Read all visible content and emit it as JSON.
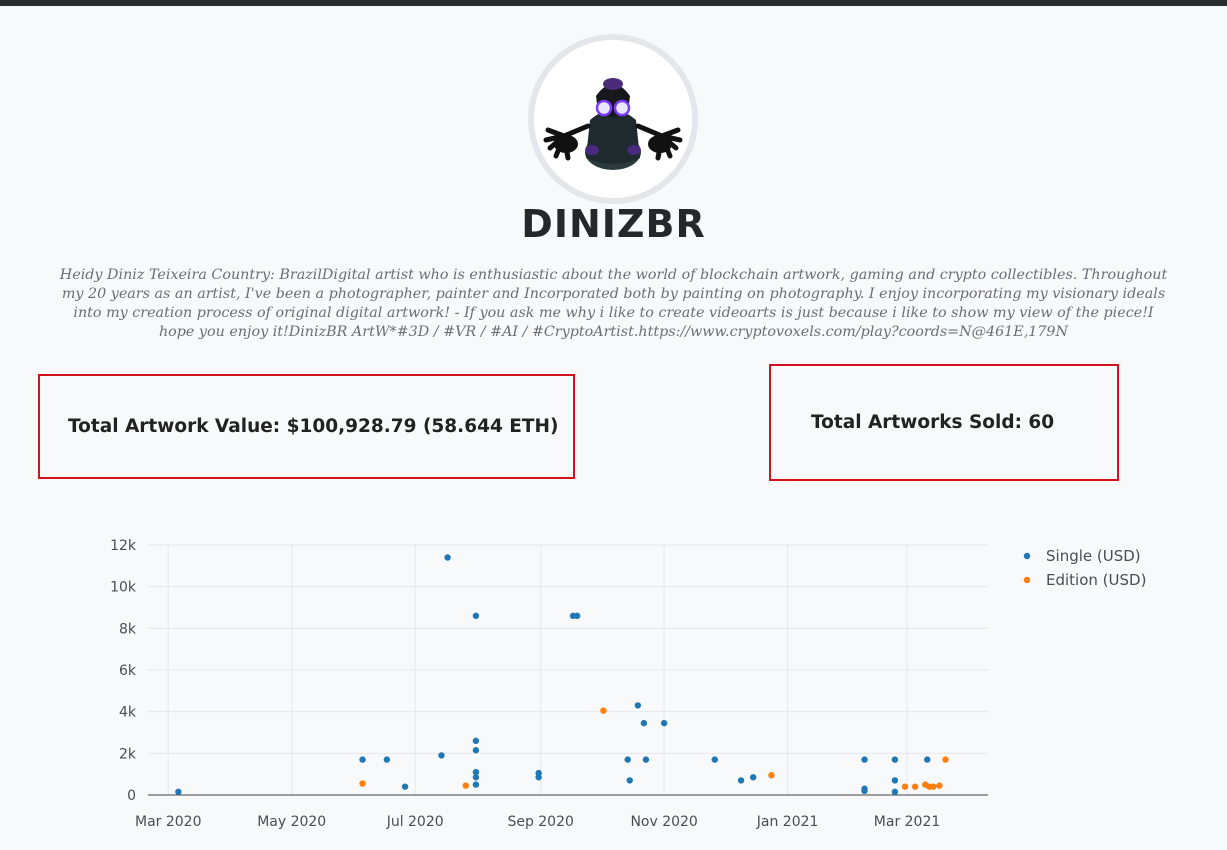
{
  "header": {
    "profile_name": "DINIZBR"
  },
  "profile": {
    "avatar_icon": "artist-avatar-icon",
    "bio": "Heidy Diniz Teixeira Country: BrazilDigital artist who is enthusiastic about the world of blockchain artwork, gaming and crypto collectibles. Throughout my 20 years as an artist, I've been a photographer, painter and Incorporated both by painting on photography. I enjoy incorporating my visionary ideals into my creation process of original digital artwork! - If you ask me why i like to create videoarts is just because i like to show my view of the piece!I hope you enjoy it!DinizBR ArtW*#3D / #VR / #AI / #CryptoArtist.https://www.cryptovoxels.com/play?coords=N@461E,179N"
  },
  "stats": {
    "total_value": "Total Artwork Value: $100,928.79 (58.644 ETH)",
    "total_sold": "Total Artworks Sold: 60"
  },
  "colors": {
    "single": "#1f77b4",
    "edition": "#ff7f0e",
    "box_border": "#d4121a"
  },
  "chart_data": {
    "type": "scatter",
    "title": "",
    "xlabel": "",
    "ylabel": "",
    "x_axis": {
      "type": "date",
      "range": [
        "2020-02-20",
        "2021-04-10"
      ],
      "tick_labels": [
        "Mar 2020",
        "May 2020",
        "Jul 2020",
        "Sep 2020",
        "Nov 2020",
        "Jan 2021",
        "Mar 2021"
      ],
      "tick_dates": [
        "2020-03-01",
        "2020-05-01",
        "2020-07-01",
        "2020-09-01",
        "2020-11-01",
        "2021-01-01",
        "2021-03-01"
      ]
    },
    "y_axis": {
      "range": [
        0,
        12000
      ],
      "tick_values": [
        0,
        2000,
        4000,
        6000,
        8000,
        10000,
        12000
      ],
      "tick_labels": [
        "0",
        "2k",
        "4k",
        "6k",
        "8k",
        "10k",
        "12k"
      ]
    },
    "grid": true,
    "legend": "top-right",
    "series": [
      {
        "name": "Single (USD)",
        "color": "#1f77b4",
        "points": [
          {
            "x": "2020-03-06",
            "y": 150
          },
          {
            "x": "2020-06-05",
            "y": 1700
          },
          {
            "x": "2020-06-17",
            "y": 1700
          },
          {
            "x": "2020-06-26",
            "y": 400
          },
          {
            "x": "2020-07-14",
            "y": 1900
          },
          {
            "x": "2020-07-17",
            "y": 11400
          },
          {
            "x": "2020-07-31",
            "y": 8600
          },
          {
            "x": "2020-07-31",
            "y": 2600
          },
          {
            "x": "2020-07-31",
            "y": 2150
          },
          {
            "x": "2020-07-31",
            "y": 1100
          },
          {
            "x": "2020-07-31",
            "y": 850
          },
          {
            "x": "2020-07-31",
            "y": 500
          },
          {
            "x": "2020-08-31",
            "y": 1050
          },
          {
            "x": "2020-08-31",
            "y": 850
          },
          {
            "x": "2020-09-17",
            "y": 8600
          },
          {
            "x": "2020-09-19",
            "y": 8600
          },
          {
            "x": "2020-10-14",
            "y": 1700
          },
          {
            "x": "2020-10-15",
            "y": 700
          },
          {
            "x": "2020-10-19",
            "y": 4300
          },
          {
            "x": "2020-10-22",
            "y": 3450
          },
          {
            "x": "2020-10-23",
            "y": 1700
          },
          {
            "x": "2020-11-01",
            "y": 3450
          },
          {
            "x": "2020-11-26",
            "y": 1700
          },
          {
            "x": "2020-12-09",
            "y": 700
          },
          {
            "x": "2020-12-15",
            "y": 850
          },
          {
            "x": "2021-02-08",
            "y": 1700
          },
          {
            "x": "2021-02-08",
            "y": 300
          },
          {
            "x": "2021-02-08",
            "y": 200
          },
          {
            "x": "2021-02-23",
            "y": 1700
          },
          {
            "x": "2021-02-23",
            "y": 700
          },
          {
            "x": "2021-02-23",
            "y": 150
          },
          {
            "x": "2021-03-11",
            "y": 1700
          }
        ]
      },
      {
        "name": "Edition (USD)",
        "color": "#ff7f0e",
        "points": [
          {
            "x": "2020-06-05",
            "y": 550
          },
          {
            "x": "2020-07-26",
            "y": 450
          },
          {
            "x": "2020-10-02",
            "y": 4050
          },
          {
            "x": "2020-12-24",
            "y": 950
          },
          {
            "x": "2021-02-28",
            "y": 400
          },
          {
            "x": "2021-03-05",
            "y": 400
          },
          {
            "x": "2021-03-10",
            "y": 500
          },
          {
            "x": "2021-03-12",
            "y": 400
          },
          {
            "x": "2021-03-14",
            "y": 400
          },
          {
            "x": "2021-03-17",
            "y": 450
          },
          {
            "x": "2021-03-20",
            "y": 1700
          }
        ]
      }
    ]
  }
}
